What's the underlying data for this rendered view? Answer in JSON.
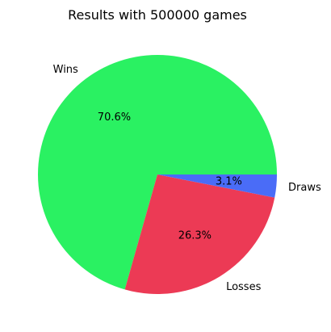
{
  "chart_data": {
    "type": "pie",
    "title": "Results with 500000 games",
    "slices": [
      {
        "label": "Wins",
        "value": 70.6,
        "pct_label": "70.6%",
        "color": "#2af162"
      },
      {
        "label": "Losses",
        "value": 26.3,
        "pct_label": "26.3%",
        "color": "#ec3a55"
      },
      {
        "label": "Draws",
        "value": 3.1,
        "pct_label": "3.1%",
        "color": "#4a6cf7"
      }
    ],
    "start_angle": "0 degrees (3 o'clock)",
    "direction": "counterclockwise",
    "legend": "none"
  }
}
